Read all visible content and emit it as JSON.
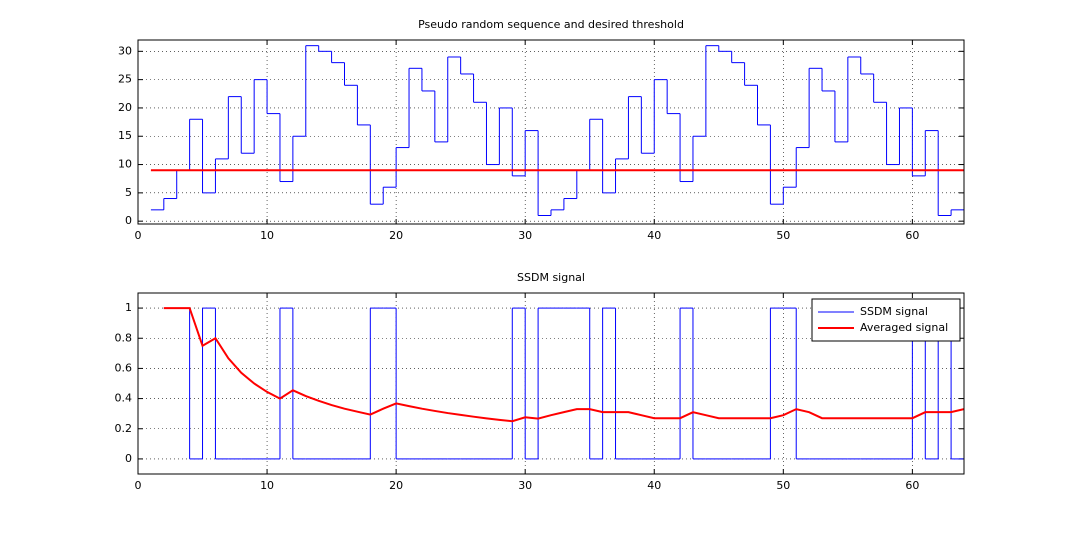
{
  "chart_data": [
    {
      "type": "line",
      "title": "Pseudo random sequence and desired threshold",
      "xlim": [
        0,
        64
      ],
      "xticks": [
        0,
        10,
        20,
        30,
        40,
        50,
        60
      ],
      "ylim": [
        -0.5,
        32
      ],
      "yticks": [
        0,
        5,
        10,
        15,
        20,
        25,
        30
      ],
      "grid": true,
      "series": [
        {
          "color": "#0000ff",
          "step": true,
          "x": [
            1,
            2,
            3,
            4,
            5,
            6,
            7,
            8,
            9,
            10,
            11,
            12,
            13,
            14,
            15,
            16,
            17,
            18,
            19,
            20,
            21,
            22,
            23,
            24,
            25,
            26,
            27,
            28,
            29,
            30,
            31,
            32,
            33,
            34,
            35,
            36,
            37,
            38,
            39,
            40,
            41,
            42,
            43,
            44,
            45,
            46,
            47,
            48,
            49,
            50,
            51,
            52,
            53,
            54,
            55,
            56,
            57,
            58,
            59,
            60,
            61,
            62,
            63,
            64
          ],
          "values": [
            2,
            4,
            9,
            18,
            5,
            11,
            22,
            12,
            25,
            19,
            7,
            15,
            31,
            30,
            28,
            24,
            17,
            3,
            6,
            13,
            27,
            23,
            14,
            29,
            26,
            21,
            10,
            20,
            8,
            16,
            1,
            2,
            4,
            9,
            18,
            5,
            11,
            22,
            12,
            25,
            19,
            7,
            15,
            31,
            30,
            28,
            24,
            17,
            3,
            6,
            13,
            27,
            23,
            14,
            29,
            26,
            21,
            10,
            20,
            8,
            16,
            1,
            2,
            4
          ]
        },
        {
          "color": "#ff0000",
          "step": false,
          "x": [
            1,
            64
          ],
          "values": [
            9,
            9
          ]
        }
      ]
    },
    {
      "type": "line",
      "title": "SSDM signal",
      "xlim": [
        0,
        64
      ],
      "xticks": [
        0,
        10,
        20,
        30,
        40,
        50,
        60
      ],
      "ylim": [
        -0.1,
        1.1
      ],
      "yticks": [
        0,
        0.2,
        0.4,
        0.6,
        0.8,
        1
      ],
      "grid": true,
      "legend": "top-right",
      "series": [
        {
          "name": "SSDM signal",
          "color": "#0000ff",
          "step": true,
          "x": [
            2,
            3,
            4,
            5,
            6,
            7,
            8,
            9,
            10,
            11,
            12,
            13,
            14,
            15,
            16,
            17,
            18,
            19,
            20,
            21,
            22,
            23,
            24,
            25,
            26,
            27,
            28,
            29,
            30,
            31,
            32,
            33,
            34,
            35,
            36,
            37,
            38,
            39,
            40,
            41,
            42,
            43,
            44,
            45,
            46,
            47,
            48,
            49,
            50,
            51,
            52,
            53,
            54,
            55,
            56,
            57,
            58,
            59,
            60,
            61,
            62,
            63,
            64
          ],
          "values": [
            1,
            1,
            0,
            1,
            0,
            0,
            0,
            0,
            0,
            1,
            0,
            0,
            0,
            0,
            0,
            0,
            1,
            1,
            0,
            0,
            0,
            0,
            0,
            0,
            0,
            0,
            0,
            1,
            0,
            1,
            1,
            1,
            1,
            0,
            1,
            0,
            0,
            0,
            0,
            0,
            1,
            0,
            0,
            0,
            0,
            0,
            0,
            1,
            1,
            0,
            0,
            0,
            0,
            0,
            0,
            0,
            0,
            0,
            1,
            0,
            1,
            0,
            0
          ]
        },
        {
          "name": "Averaged signal",
          "color": "#ff0000",
          "step": false,
          "x": [
            2,
            3,
            4,
            5,
            6,
            7,
            8,
            9,
            10,
            11,
            12,
            13,
            14,
            15,
            16,
            17,
            18,
            19,
            20,
            21,
            22,
            23,
            24,
            25,
            26,
            27,
            28,
            29,
            30,
            31,
            32,
            33,
            34,
            35,
            36,
            37,
            38,
            39,
            40,
            41,
            42,
            43,
            44,
            45,
            46,
            47,
            48,
            49,
            50,
            51,
            52,
            53,
            54,
            55,
            56,
            57,
            58,
            59,
            60,
            61,
            62,
            63,
            64
          ],
          "values": [
            1,
            1,
            1,
            0.75,
            0.8,
            0.667,
            0.571,
            0.5,
            0.444,
            0.4,
            0.455,
            0.417,
            0.385,
            0.357,
            0.333,
            0.313,
            0.294,
            0.333,
            0.368,
            0.35,
            0.333,
            0.318,
            0.304,
            0.292,
            0.28,
            0.269,
            0.259,
            0.25,
            0.276,
            0.267,
            0.29,
            0.31,
            0.33,
            0.33,
            0.31,
            0.31,
            0.31,
            0.29,
            0.27,
            0.27,
            0.27,
            0.31,
            0.29,
            0.27,
            0.27,
            0.27,
            0.27,
            0.27,
            0.29,
            0.33,
            0.31,
            0.27,
            0.27,
            0.27,
            0.27,
            0.27,
            0.27,
            0.27,
            0.27,
            0.31,
            0.31,
            0.31,
            0.33
          ]
        }
      ]
    }
  ]
}
